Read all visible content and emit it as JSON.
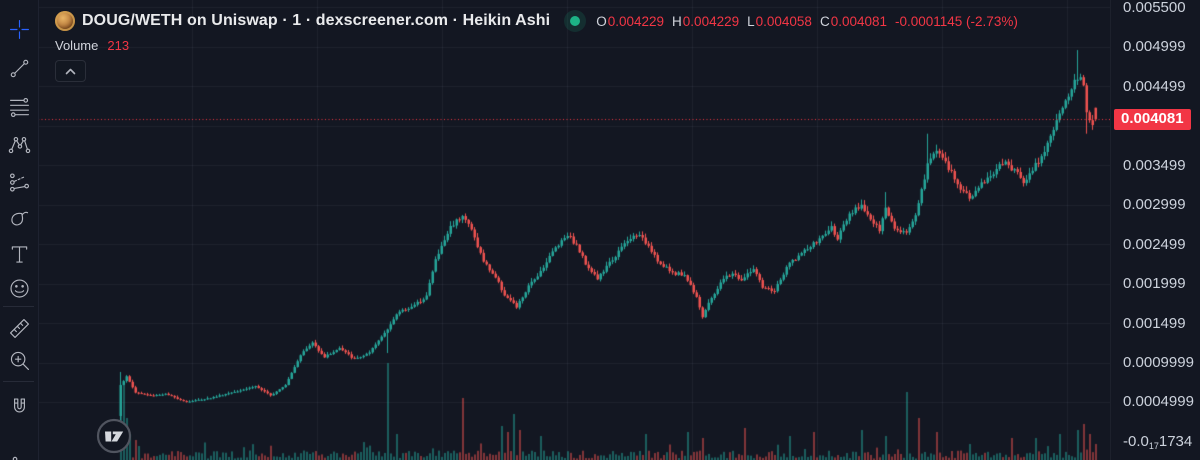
{
  "header": {
    "title": "DOUG/WETH on Uniswap · 1 · dexscreener.com · Heikin Ashi",
    "ohlc": {
      "o_label": "O",
      "o_value": "0.004229",
      "h_label": "H",
      "h_value": "0.004229",
      "l_label": "L",
      "l_value": "0.004058",
      "c_label": "C",
      "c_value": "0.004081",
      "change": "-0.0001145 (-2.73%)"
    },
    "indicator": {
      "label": "Volume",
      "value": "213"
    }
  },
  "toolbar": {
    "tools": [
      "crosshair",
      "trend-line",
      "fib-retracement",
      "xabcd-pattern",
      "forecast",
      "brush",
      "text",
      "emoji",
      "ruler",
      "zoom-in",
      "magnet"
    ],
    "active_tool": "crosshair"
  },
  "price_axis": {
    "labels": [
      {
        "text": "0.005500",
        "price": 0.0055
      },
      {
        "text": "0.004999",
        "price": 0.0049995
      },
      {
        "text": "0.004499",
        "price": 0.0044995
      },
      {
        "text": "0.003499",
        "price": 0.0034995
      },
      {
        "text": "0.002999",
        "price": 0.0029995
      },
      {
        "text": "0.002499",
        "price": 0.0024995
      },
      {
        "text": "0.001999",
        "price": 0.0019995
      },
      {
        "text": "0.001499",
        "price": 0.0014995
      },
      {
        "text": "0.0009999",
        "price": 0.0009999
      },
      {
        "text": "0.0004999",
        "price": 0.0004999
      }
    ],
    "zero_label": {
      "prefix": "-0.0",
      "subscript": "17",
      "suffix": "1734",
      "price": 0.0
    },
    "last_price_badge": {
      "text": "0.004081",
      "price": 0.004081
    }
  },
  "chart_data": {
    "type": "candlestick-heikin-ashi",
    "pair": "DOUG/WETH",
    "venue": "Uniswap",
    "interval": "1",
    "last": {
      "open": 0.004229,
      "high": 0.004229,
      "low": 0.004058,
      "close": 0.004081,
      "change_abs": -0.0001145,
      "change_pct": -2.73
    },
    "volume_last": 213,
    "price_range_visible": [
      0.0,
      0.0055
    ],
    "num_candles": 326,
    "price_waypoints": [
      [
        0,
        0.00072
      ],
      [
        2,
        0.00082
      ],
      [
        5,
        0.00062
      ],
      [
        10,
        0.00058
      ],
      [
        15,
        0.0006
      ],
      [
        22,
        0.0005
      ],
      [
        30,
        0.00055
      ],
      [
        38,
        0.00063
      ],
      [
        45,
        0.0007
      ],
      [
        50,
        0.00058
      ],
      [
        55,
        0.00072
      ],
      [
        60,
        0.0011
      ],
      [
        64,
        0.00125
      ],
      [
        68,
        0.00107
      ],
      [
        73,
        0.00118
      ],
      [
        78,
        0.00104
      ],
      [
        83,
        0.00112
      ],
      [
        88,
        0.00138
      ],
      [
        93,
        0.00165
      ],
      [
        98,
        0.00172
      ],
      [
        102,
        0.00185
      ],
      [
        105,
        0.0023
      ],
      [
        110,
        0.00272
      ],
      [
        114,
        0.00288
      ],
      [
        117,
        0.00268
      ],
      [
        121,
        0.00228
      ],
      [
        125,
        0.00208
      ],
      [
        128,
        0.00186
      ],
      [
        132,
        0.0017
      ],
      [
        136,
        0.00196
      ],
      [
        140,
        0.00216
      ],
      [
        145,
        0.00246
      ],
      [
        149,
        0.00263
      ],
      [
        152,
        0.00248
      ],
      [
        155,
        0.00226
      ],
      [
        159,
        0.00206
      ],
      [
        163,
        0.00226
      ],
      [
        168,
        0.0025
      ],
      [
        172,
        0.00263
      ],
      [
        176,
        0.00249
      ],
      [
        180,
        0.00224
      ],
      [
        184,
        0.00214
      ],
      [
        188,
        0.00211
      ],
      [
        192,
        0.00184
      ],
      [
        194,
        0.00158
      ],
      [
        197,
        0.00182
      ],
      [
        201,
        0.00206
      ],
      [
        204,
        0.00213
      ],
      [
        207,
        0.00204
      ],
      [
        211,
        0.00219
      ],
      [
        214,
        0.00194
      ],
      [
        218,
        0.00191
      ],
      [
        223,
        0.00226
      ],
      [
        228,
        0.00241
      ],
      [
        233,
        0.00256
      ],
      [
        237,
        0.00271
      ],
      [
        239,
        0.00258
      ],
      [
        243,
        0.00286
      ],
      [
        247,
        0.00301
      ],
      [
        250,
        0.00281
      ],
      [
        253,
        0.00267
      ],
      [
        255,
        0.00295
      ],
      [
        258,
        0.00272
      ],
      [
        262,
        0.00264
      ],
      [
        265,
        0.00288
      ],
      [
        269,
        0.0035
      ],
      [
        272,
        0.00372
      ],
      [
        275,
        0.00352
      ],
      [
        279,
        0.00326
      ],
      [
        283,
        0.00308
      ],
      [
        287,
        0.00326
      ],
      [
        291,
        0.00341
      ],
      [
        294,
        0.00353
      ],
      [
        298,
        0.00344
      ],
      [
        301,
        0.0033
      ],
      [
        304,
        0.00345
      ],
      [
        307,
        0.00362
      ],
      [
        311,
        0.00396
      ],
      [
        313,
        0.00412
      ],
      [
        316,
        0.00437
      ],
      [
        318,
        0.00458
      ],
      [
        320,
        0.00465
      ],
      [
        321,
        0.00448
      ],
      [
        322,
        0.00418
      ],
      [
        324,
        0.00398
      ],
      [
        325,
        0.004081
      ]
    ],
    "wick_overrides": [
      [
        0,
        0.00088,
        0.0002
      ],
      [
        89,
        null,
        0.00112
      ],
      [
        255,
        0.00316,
        null
      ],
      [
        269,
        0.0039,
        null
      ],
      [
        319,
        0.00496,
        null
      ],
      [
        322,
        null,
        0.0039
      ]
    ],
    "volume_spikes": [
      [
        0,
        55,
        "u"
      ],
      [
        1,
        78,
        "u"
      ],
      [
        2,
        42,
        "u"
      ],
      [
        3,
        26,
        "u"
      ],
      [
        5,
        20,
        "d"
      ],
      [
        6,
        14,
        "u"
      ],
      [
        89,
        97,
        "u"
      ],
      [
        92,
        26,
        "u"
      ],
      [
        114,
        62,
        "d"
      ],
      [
        127,
        34,
        "u"
      ],
      [
        129,
        28,
        "d"
      ],
      [
        131,
        46,
        "u"
      ],
      [
        133,
        30,
        "d"
      ],
      [
        140,
        24,
        "u"
      ],
      [
        175,
        26,
        "u"
      ],
      [
        189,
        28,
        "u"
      ],
      [
        194,
        22,
        "d"
      ],
      [
        208,
        32,
        "d"
      ],
      [
        223,
        24,
        "u"
      ],
      [
        231,
        28,
        "d"
      ],
      [
        247,
        30,
        "u"
      ],
      [
        255,
        24,
        "u"
      ],
      [
        262,
        68,
        "u"
      ],
      [
        266,
        42,
        "d"
      ],
      [
        272,
        28,
        "d"
      ],
      [
        283,
        16,
        "u"
      ],
      [
        297,
        22,
        "d"
      ],
      [
        305,
        22,
        "u"
      ],
      [
        313,
        26,
        "u"
      ],
      [
        319,
        30,
        "u"
      ],
      [
        321,
        36,
        "d"
      ],
      [
        323,
        26,
        "d"
      ],
      [
        325,
        16,
        "d"
      ]
    ],
    "colors": {
      "up": "#26a69a",
      "down": "#ef5350",
      "last_price_line": "#f23645",
      "volume_up": "rgba(38,166,154,0.5)",
      "volume_down": "rgba(239,83,80,0.5)"
    }
  },
  "branding": {
    "logo": "tradingview"
  }
}
